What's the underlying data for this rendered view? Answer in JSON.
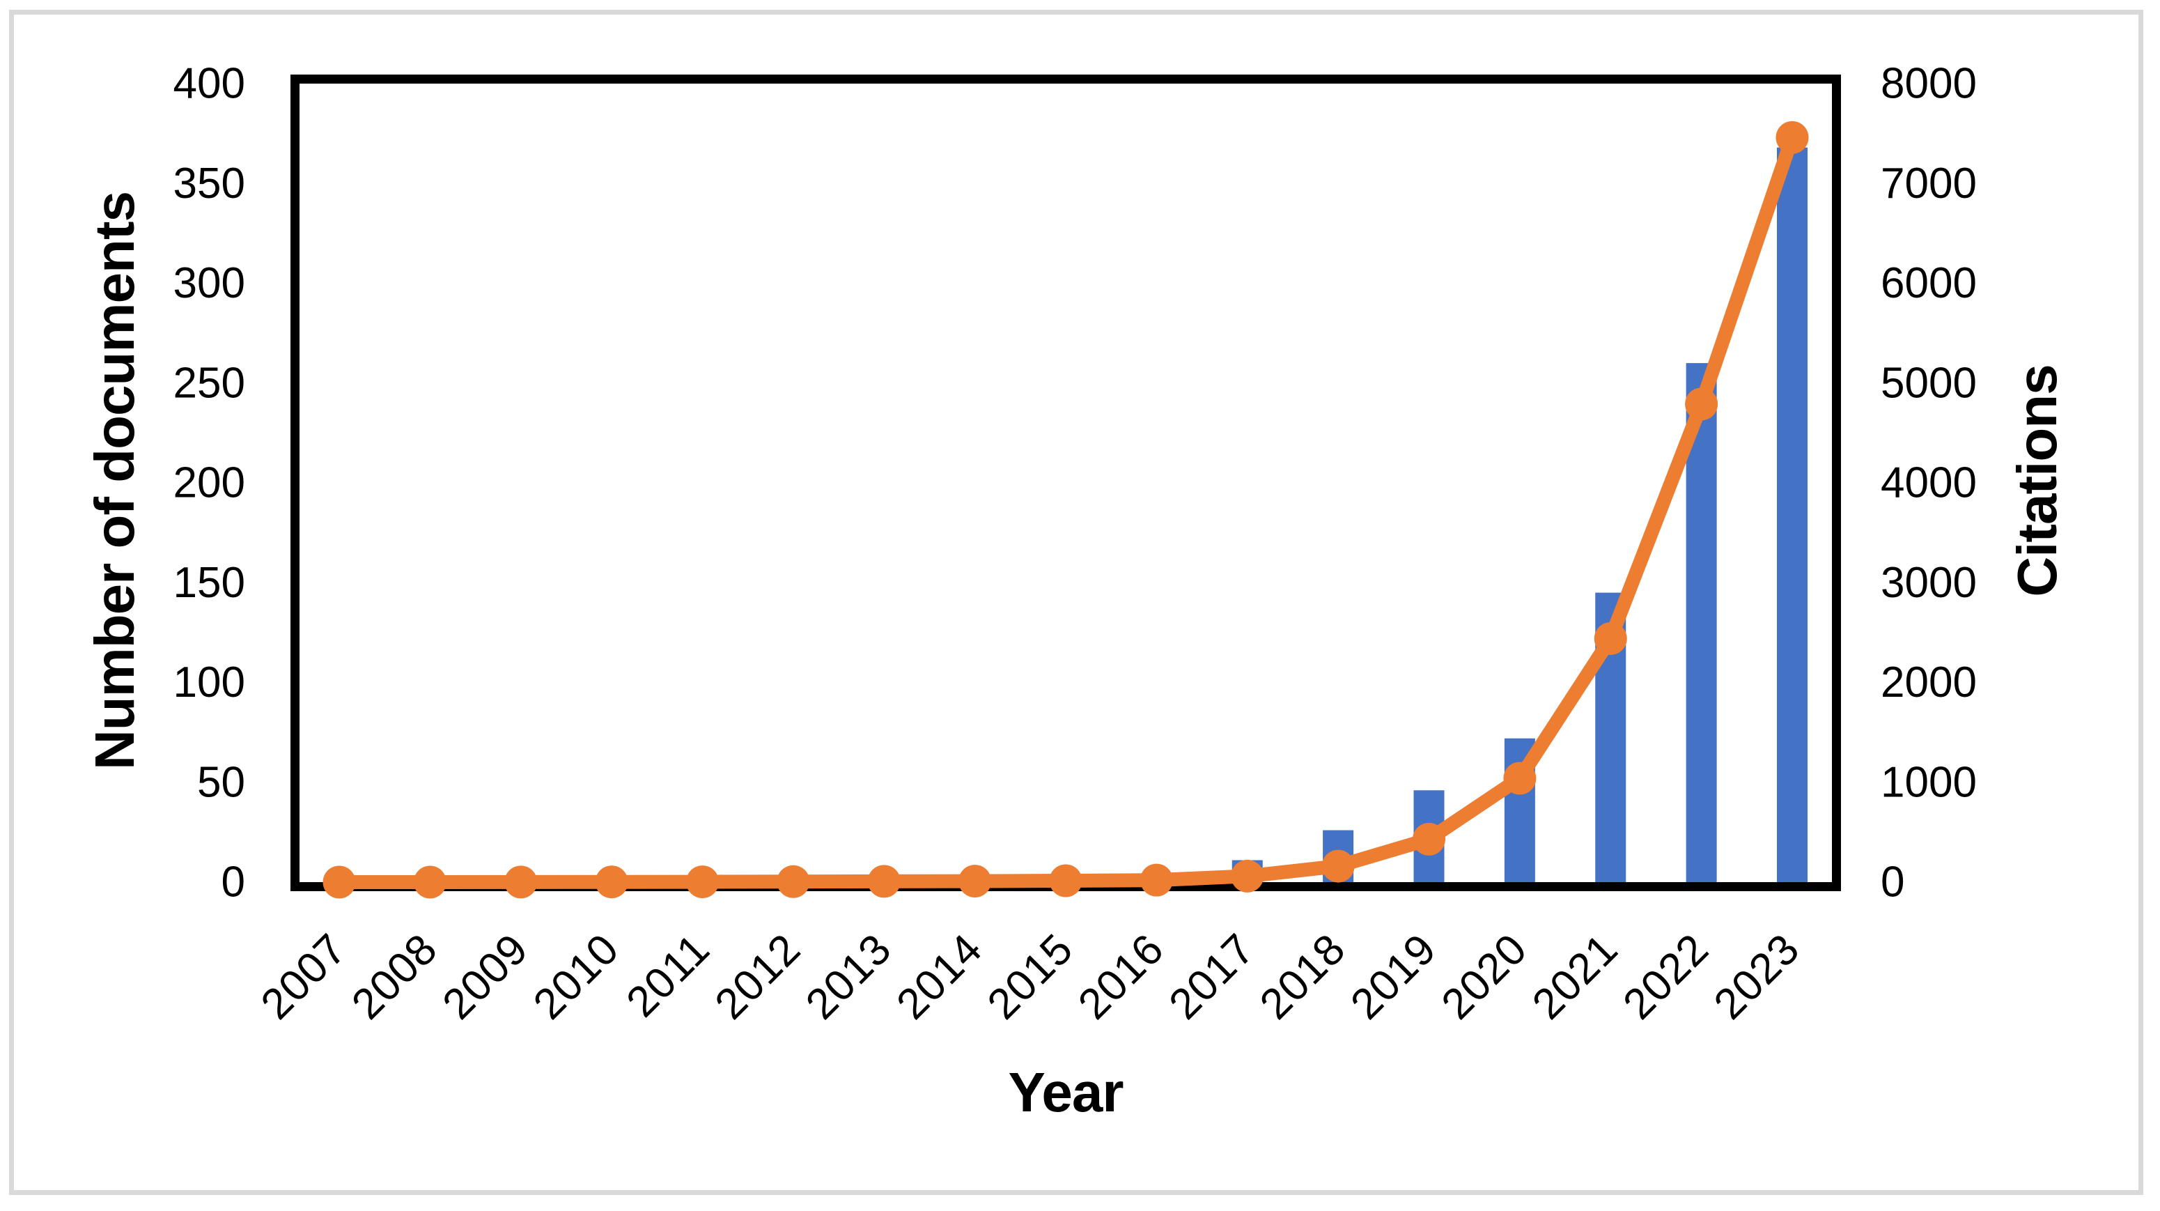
{
  "figure": {
    "background": "#ffffff",
    "border_color": "#d9d9d9"
  },
  "chart_data": {
    "type": "combo_bar_line",
    "title": "",
    "x": [
      2007,
      2008,
      2009,
      2010,
      2011,
      2012,
      2013,
      2014,
      2015,
      2016,
      2017,
      2018,
      2019,
      2020,
      2021,
      2022,
      2023
    ],
    "series": [
      {
        "name": "Number of documents",
        "type": "bar",
        "axis": "left",
        "color": "#4472C4",
        "values": [
          1,
          1,
          1,
          1,
          1,
          1,
          2,
          2,
          2,
          4,
          11,
          26,
          46,
          72,
          145,
          260,
          368
        ]
      },
      {
        "name": "Citations",
        "type": "line",
        "axis": "right",
        "color": "#ED7D31",
        "values": [
          0,
          0,
          1,
          2,
          3,
          5,
          8,
          10,
          14,
          20,
          60,
          160,
          430,
          1040,
          2440,
          4790,
          7460
        ]
      }
    ],
    "left_axis": {
      "title": "Number of documents",
      "min": 0,
      "max": 400,
      "step": 50
    },
    "right_axis": {
      "title": "Citations",
      "min": 0,
      "max": 8000,
      "step": 1000
    },
    "x_axis": {
      "title": "Year"
    },
    "grid": false,
    "legend": "none",
    "plot_border_color": "#000000"
  }
}
